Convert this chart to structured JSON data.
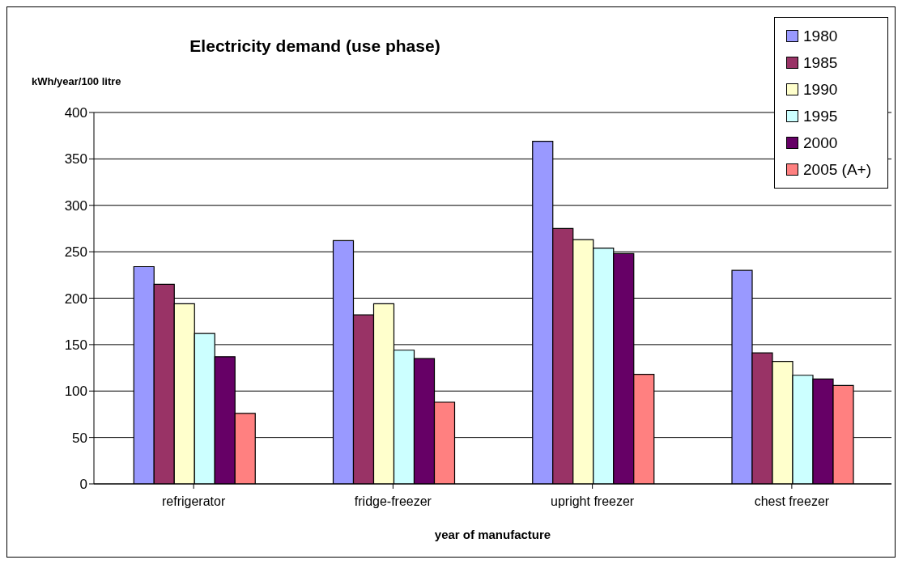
{
  "chart_data": {
    "type": "bar",
    "title": "Electricity demand (use phase)",
    "ylabel": "kWh/year/100 litre",
    "xlabel": "year of manufacture",
    "categories": [
      "refrigerator",
      "fridge-freezer",
      "upright freezer",
      "chest freezer"
    ],
    "series": [
      {
        "name": "1980",
        "color": "#9999ff",
        "values": [
          234,
          262,
          369,
          230
        ]
      },
      {
        "name": "1985",
        "color": "#993366",
        "values": [
          215,
          182,
          275,
          141
        ]
      },
      {
        "name": "1990",
        "color": "#ffffcc",
        "values": [
          194,
          194,
          263,
          132
        ]
      },
      {
        "name": "1995",
        "color": "#ccffff",
        "values": [
          162,
          144,
          254,
          117
        ]
      },
      {
        "name": "2000",
        "color": "#660066",
        "values": [
          137,
          135,
          248,
          113
        ]
      },
      {
        "name": "2005 (A+)",
        "color": "#ff8080",
        "values": [
          76,
          88,
          118,
          106
        ]
      }
    ],
    "ylim": [
      0,
      400
    ],
    "yticks": [
      0,
      50,
      100,
      150,
      200,
      250,
      300,
      350,
      400
    ],
    "grid": "y",
    "legend": "top right"
  }
}
